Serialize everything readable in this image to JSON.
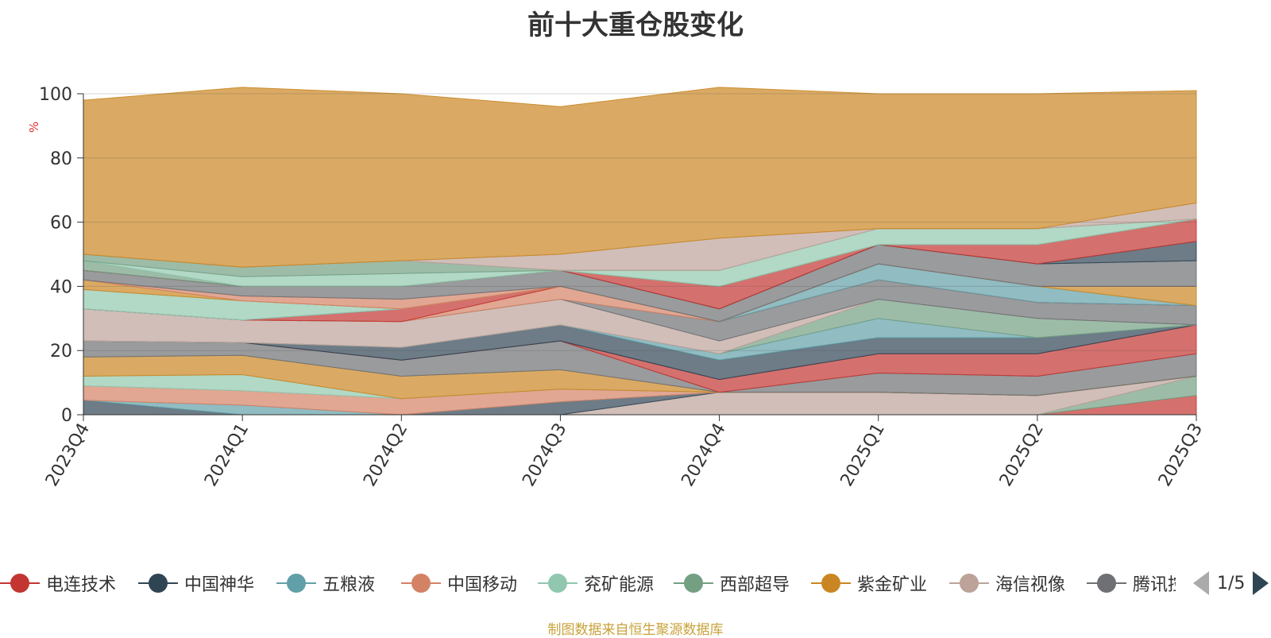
{
  "chart_data": {
    "type": "area",
    "stacked": true,
    "title": "前十大重仓股变化",
    "xlabel": "",
    "ylabel": "%",
    "ylim": [
      0,
      100
    ],
    "yticks": [
      0,
      20,
      40,
      60,
      80,
      100
    ],
    "categories": [
      "2023Q4",
      "2024Q1",
      "2024Q2",
      "2024Q3",
      "2024Q4",
      "2025Q1",
      "2025Q2",
      "2025Q3"
    ],
    "series": [
      {
        "name": "电连技术",
        "color": "#c23531",
        "values": [
          0,
          0,
          0,
          0,
          0,
          0,
          0,
          6
        ]
      },
      {
        "name": "西部超导",
        "color": "#749f83",
        "values": [
          0,
          0,
          0,
          0,
          0,
          0,
          0,
          6
        ]
      },
      {
        "name": "海信视像",
        "color": "#bda29a",
        "values": [
          0,
          0,
          0,
          0,
          7,
          7,
          6,
          0
        ]
      },
      {
        "name": "中国神华",
        "color": "#2f4554",
        "values": [
          4.5,
          0,
          0,
          4,
          0,
          0,
          0,
          0
        ]
      },
      {
        "name": "五粮液",
        "color": "#61a0a8",
        "values": [
          0,
          3,
          0,
          0,
          0,
          0,
          0,
          0
        ]
      },
      {
        "name": "中国移动",
        "color": "#d48265",
        "values": [
          4.5,
          4.5,
          5,
          4,
          0,
          0,
          0,
          0
        ]
      },
      {
        "name": "兖矿能源",
        "color": "#91c7ae",
        "values": [
          3,
          5,
          0,
          0,
          0,
          0,
          0,
          0
        ]
      },
      {
        "name": "紫金矿业",
        "color": "#ca8622",
        "values": [
          6,
          6,
          7,
          6,
          0,
          0,
          0,
          0
        ]
      },
      {
        "name": "腾讯控股",
        "color": "#6e7074",
        "values": [
          5,
          4,
          5,
          9,
          0,
          6,
          6,
          7
        ]
      },
      {
        "name": "电连技术",
        "color": "#c23531",
        "values": [
          0,
          0,
          0,
          0,
          4,
          6,
          7,
          9
        ]
      },
      {
        "name": "中国神华",
        "color": "#2f4554",
        "values": [
          0,
          0,
          4,
          5,
          6,
          5,
          5,
          0
        ]
      },
      {
        "name": "五粮液",
        "color": "#61a0a8",
        "values": [
          0,
          0,
          0,
          0,
          2,
          6,
          0,
          0
        ]
      },
      {
        "name": "西部超导",
        "color": "#749f83",
        "values": [
          0,
          0,
          0,
          0,
          0,
          6,
          6,
          0
        ]
      },
      {
        "name": "海信视像",
        "color": "#bda29a",
        "values": [
          10,
          7,
          8,
          8,
          4,
          0,
          0,
          0
        ]
      },
      {
        "name": "腾讯控股",
        "color": "#6e7074",
        "values": [
          0,
          0,
          0,
          0,
          6,
          6,
          5,
          6
        ]
      },
      {
        "name": "中国移动",
        "color": "#d48265",
        "values": [
          0,
          0,
          0,
          4,
          0,
          0,
          0,
          0
        ]
      },
      {
        "name": "电连技术",
        "color": "#c23531",
        "values": [
          0,
          0,
          4,
          0,
          0,
          0,
          0,
          0
        ]
      },
      {
        "name": "五粮液",
        "color": "#61a0a8",
        "values": [
          0,
          0,
          0,
          0,
          0,
          5,
          5,
          0
        ]
      },
      {
        "name": "兖矿能源",
        "color": "#91c7ae",
        "values": [
          6,
          6,
          0,
          0,
          0,
          0,
          0,
          0
        ]
      },
      {
        "name": "紫金矿业",
        "color": "#ca8622",
        "values": [
          3,
          0,
          0,
          0,
          0,
          0,
          0,
          6
        ]
      },
      {
        "name": "中国移动",
        "color": "#d48265",
        "values": [
          0,
          1.5,
          3,
          0,
          0,
          0,
          0,
          0
        ]
      },
      {
        "name": "腾讯控股",
        "color": "#6e7074",
        "values": [
          3,
          3,
          4,
          5,
          4,
          6,
          7,
          8
        ]
      },
      {
        "name": "中国神华",
        "color": "#2f4554",
        "values": [
          0,
          0,
          0,
          0,
          0,
          0,
          0,
          6
        ]
      },
      {
        "name": "电连技术",
        "color": "#c23531",
        "values": [
          0,
          0,
          0,
          0,
          7,
          0,
          6,
          7
        ]
      },
      {
        "name": "西部超导",
        "color": "#749f83",
        "values": [
          3,
          0,
          0,
          0,
          0,
          0,
          0,
          0
        ]
      },
      {
        "name": "兖矿能源",
        "color": "#91c7ae",
        "values": [
          0,
          3,
          4,
          0,
          5,
          5,
          5,
          0
        ]
      },
      {
        "name": "西部超导",
        "color": "#749f83",
        "values": [
          2,
          3,
          4,
          0,
          0,
          0,
          0,
          0
        ]
      },
      {
        "name": "海信视像",
        "color": "#bda29a",
        "values": [
          0,
          0,
          0,
          5,
          10,
          0,
          0,
          5
        ]
      },
      {
        "name": "紫金矿业",
        "color": "#ca8622",
        "values": [
          48,
          56,
          52,
          46,
          47,
          42,
          42,
          35
        ]
      }
    ]
  },
  "legend": {
    "items": [
      {
        "label": "电连技术",
        "color": "#c23531"
      },
      {
        "label": "中国神华",
        "color": "#2f4554"
      },
      {
        "label": "五粮液",
        "color": "#61a0a8"
      },
      {
        "label": "中国移动",
        "color": "#d48265"
      },
      {
        "label": "兖矿能源",
        "color": "#91c7ae"
      },
      {
        "label": "西部超导",
        "color": "#749f83"
      },
      {
        "label": "紫金矿业",
        "color": "#ca8622"
      },
      {
        "label": "海信视像",
        "color": "#bda29a"
      },
      {
        "label": "腾讯控股",
        "color": "#6e7074"
      }
    ],
    "page_indicator": "1/5"
  },
  "source_note": "制图数据来自恒生聚源数据库"
}
